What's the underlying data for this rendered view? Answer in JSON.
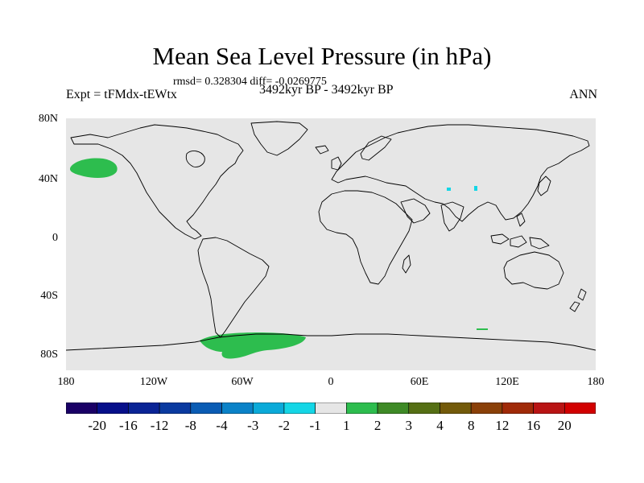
{
  "title": "Mean Sea Level Pressure (in hPa)",
  "stats_line": "rmsd= 0.328304 diff= -0.0269775",
  "experiment": "Expt = tFMdx-tEWtx",
  "period": "3492kyr BP - 3492kyr BP",
  "season": "ANN",
  "y_axis_labels": [
    "80N",
    "40N",
    "0",
    "40S",
    "80S"
  ],
  "x_axis_labels": [
    "180",
    "120W",
    "60W",
    "0",
    "60E",
    "120E",
    "180"
  ],
  "colors": {
    "ocean_background": "#e6e6e6",
    "coastline": "#000000",
    "anomaly_positive_small": "#2dbd4e",
    "anomaly_negative_small": "#14d6e6"
  },
  "colorbar": {
    "labels": [
      "-20",
      "-16",
      "-12",
      "-8",
      "-4",
      "-3",
      "-2",
      "-1",
      "1",
      "2",
      "3",
      "4",
      "8",
      "12",
      "16",
      "20"
    ],
    "colors": [
      "#1a0066",
      "#060f8a",
      "#0a2496",
      "#0a3aa0",
      "#0a5cb4",
      "#0a82c8",
      "#0aaad9",
      "#14d6e6",
      "#e6e6e6",
      "#2dbd4e",
      "#3e8a26",
      "#556f14",
      "#735a0a",
      "#8a4008",
      "#a02a08",
      "#b91414",
      "#d20000"
    ]
  },
  "anomaly_regions": [
    {
      "name": "north-pacific-high-anomaly",
      "sign": "positive"
    },
    {
      "name": "antarctic-peninsula-anomaly",
      "sign": "positive"
    },
    {
      "name": "tibet-plateau-anomaly",
      "sign": "negative"
    }
  ]
}
